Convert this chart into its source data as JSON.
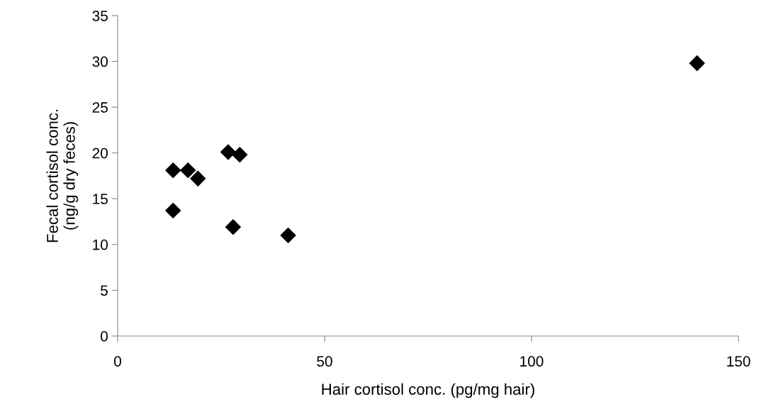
{
  "chart_data": {
    "type": "scatter",
    "xlabel": "Hair cortisol conc. (pg/mg hair)",
    "ylabel": "Fecal cortisol conc.\n(ng/g dry feces)",
    "x": [
      13.4,
      17.0,
      19.4,
      26.7,
      29.5,
      13.4,
      27.9,
      41.2,
      140
    ],
    "series": [
      {
        "color": "#000000",
        "values": [
          18.1,
          18.1,
          17.2,
          20.1,
          19.8,
          13.7,
          11.9,
          11.0,
          29.8
        ]
      }
    ],
    "marker": "diamond",
    "xlim": [
      0,
      150
    ],
    "ylim": [
      0,
      35
    ],
    "xticks": [
      0,
      50,
      100,
      150
    ],
    "yticks": [
      0,
      5,
      10,
      15,
      20,
      25,
      30,
      35
    ],
    "grid": false,
    "legend": false
  }
}
